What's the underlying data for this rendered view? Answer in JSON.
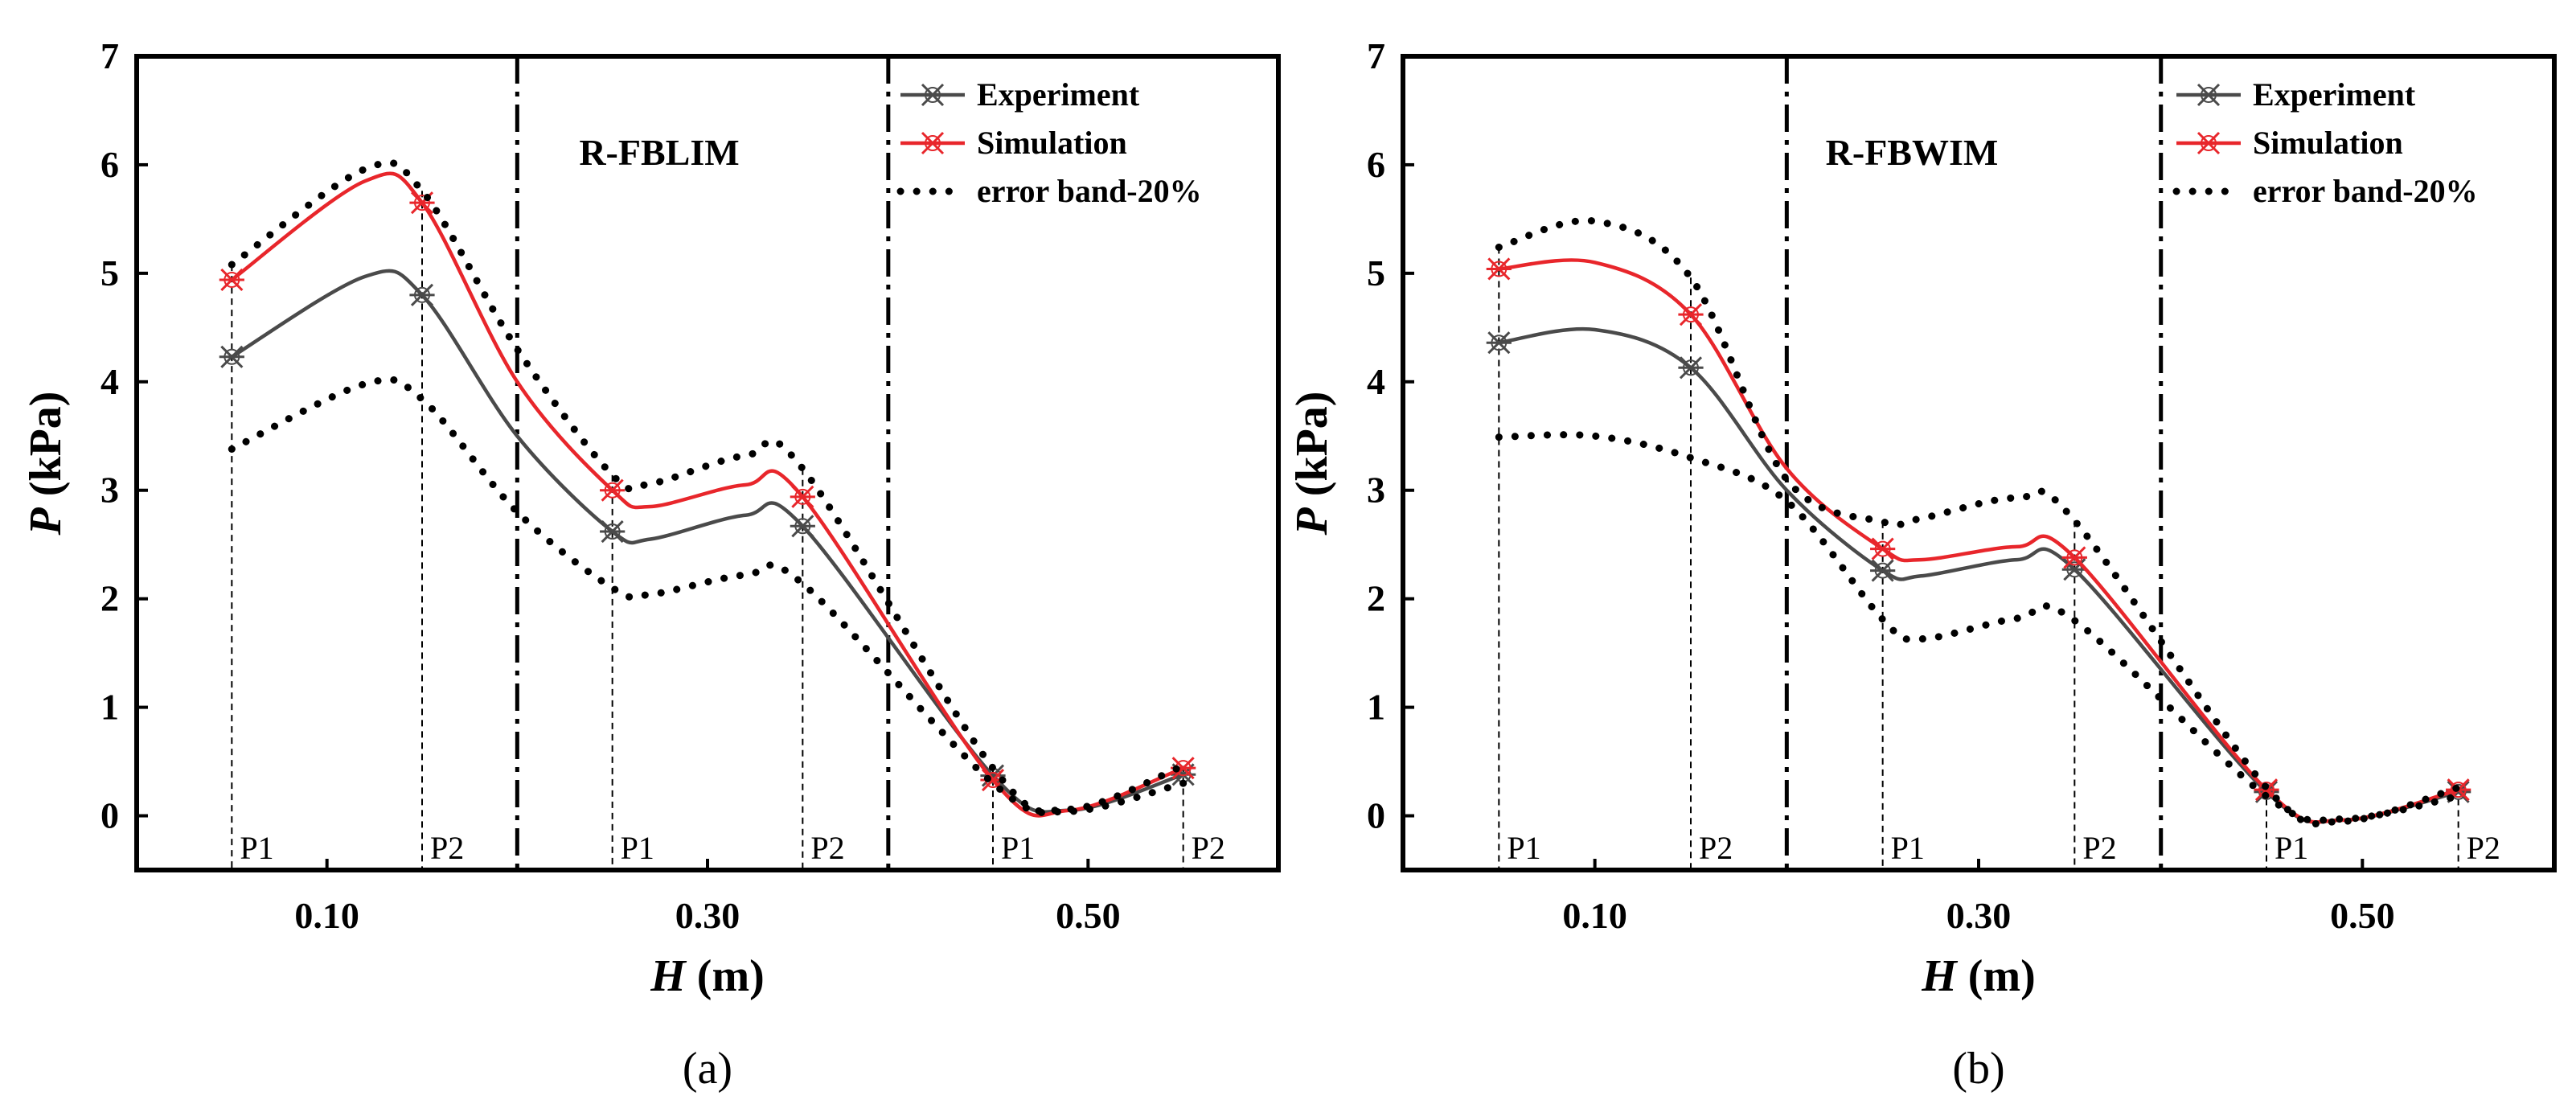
{
  "chart_data": [
    {
      "type": "line",
      "panel_label": "(a)",
      "region_label": "R-FBLIM",
      "xlabel": "H",
      "xlabel_unit": "(m)",
      "ylabel": "P",
      "ylabel_unit": "(kPa)",
      "xlim": [
        0.0,
        0.6
      ],
      "ylim": [
        -0.5,
        7
      ],
      "x_ticks": [
        0.1,
        0.3,
        0.5
      ],
      "x_tick_labels": [
        "0.10",
        "0.30",
        "0.50"
      ],
      "y_ticks": [
        0,
        1,
        2,
        3,
        4,
        5,
        6,
        7
      ],
      "y_tick_labels": [
        "0",
        "1",
        "2",
        "3",
        "4",
        "5",
        "6",
        "7"
      ],
      "region_dividers": [
        0.2,
        0.395
      ],
      "probe_x": [
        0.05,
        0.15,
        0.25,
        0.35,
        0.45,
        0.55
      ],
      "probe_labels": [
        "P1",
        "P2",
        "P1",
        "P2",
        "P1",
        "P2"
      ],
      "legend": [
        "Experiment",
        "Simulation",
        "error band-20%"
      ],
      "series": [
        {
          "name": "Experiment",
          "color": "#4a4a4a",
          "x": [
            0.05,
            0.12,
            0.15,
            0.2,
            0.25,
            0.27,
            0.32,
            0.35,
            0.45,
            0.49,
            0.55
          ],
          "y": [
            4.23,
            4.97,
            4.8,
            3.5,
            2.62,
            2.55,
            2.77,
            2.67,
            0.37,
            0.05,
            0.38
          ],
          "markers": [
            0,
            2,
            4,
            7,
            8,
            10
          ]
        },
        {
          "name": "Simulation",
          "color": "#e8262b",
          "x": [
            0.05,
            0.12,
            0.15,
            0.2,
            0.25,
            0.27,
            0.32,
            0.35,
            0.45,
            0.49,
            0.55
          ],
          "y": [
            4.94,
            5.85,
            5.65,
            4.0,
            3.0,
            2.85,
            3.05,
            2.94,
            0.33,
            0.05,
            0.44
          ],
          "markers": [
            0,
            2,
            4,
            7,
            8,
            10
          ]
        },
        {
          "name": "error band-20%",
          "color": "#000000",
          "dashed": true,
          "x": [
            0.05,
            0.12,
            0.15,
            0.2,
            0.25,
            0.27,
            0.32,
            0.35,
            0.45,
            0.49,
            0.55
          ],
          "y": [
            5.08,
            5.96,
            5.76,
            4.3,
            3.14,
            3.06,
            3.32,
            3.2,
            0.44,
            0.06,
            0.46
          ]
        },
        {
          "name": "error band-20% lower",
          "color": "#000000",
          "dashed": true,
          "x": [
            0.05,
            0.12,
            0.15,
            0.2,
            0.25,
            0.27,
            0.32,
            0.35,
            0.45,
            0.49,
            0.55
          ],
          "y": [
            3.38,
            3.98,
            3.84,
            2.8,
            2.1,
            2.04,
            2.22,
            2.14,
            0.3,
            0.04,
            0.3
          ]
        }
      ]
    },
    {
      "type": "line",
      "panel_label": "(b)",
      "region_label": "R-FBWIM",
      "xlabel": "H",
      "xlabel_unit": "(m)",
      "ylabel": "P",
      "ylabel_unit": "(kPa)",
      "xlim": [
        0.0,
        0.6
      ],
      "ylim": [
        -0.5,
        7
      ],
      "x_ticks": [
        0.1,
        0.3,
        0.5
      ],
      "x_tick_labels": [
        "0.10",
        "0.30",
        "0.50"
      ],
      "y_ticks": [
        0,
        1,
        2,
        3,
        4,
        5,
        6,
        7
      ],
      "y_tick_labels": [
        "0",
        "1",
        "2",
        "3",
        "4",
        "5",
        "6",
        "7"
      ],
      "region_dividers": [
        0.2,
        0.395
      ],
      "probe_x": [
        0.05,
        0.15,
        0.25,
        0.35,
        0.45,
        0.55
      ],
      "probe_labels": [
        "P1",
        "P2",
        "P1",
        "P2",
        "P1",
        "P2"
      ],
      "legend": [
        "Experiment",
        "Simulation",
        "error band-20%"
      ],
      "series": [
        {
          "name": "Experiment",
          "color": "#4a4a4a",
          "x": [
            0.05,
            0.1,
            0.15,
            0.2,
            0.25,
            0.27,
            0.32,
            0.35,
            0.45,
            0.49,
            0.55
          ],
          "y": [
            4.36,
            4.48,
            4.13,
            3.0,
            2.26,
            2.21,
            2.36,
            2.27,
            0.22,
            -0.04,
            0.22
          ],
          "markers": [
            0,
            2,
            4,
            7,
            8,
            10
          ]
        },
        {
          "name": "Simulation",
          "color": "#e8262b",
          "x": [
            0.05,
            0.1,
            0.15,
            0.2,
            0.25,
            0.27,
            0.32,
            0.35,
            0.45,
            0.49,
            0.55
          ],
          "y": [
            5.04,
            5.1,
            4.62,
            3.2,
            2.46,
            2.36,
            2.48,
            2.38,
            0.24,
            -0.04,
            0.24
          ],
          "markers": [
            0,
            2,
            4,
            7,
            8,
            10
          ]
        },
        {
          "name": "error band-20%",
          "color": "#000000",
          "dashed": true,
          "x": [
            0.05,
            0.1,
            0.15,
            0.2,
            0.25,
            0.27,
            0.32,
            0.35,
            0.45,
            0.49,
            0.55
          ],
          "y": [
            5.24,
            5.48,
            4.96,
            3.1,
            2.71,
            2.74,
            2.93,
            2.72,
            0.26,
            -0.05,
            0.26
          ]
        },
        {
          "name": "error band-20% lower",
          "color": "#000000",
          "dashed": true,
          "x": [
            0.05,
            0.1,
            0.15,
            0.2,
            0.25,
            0.27,
            0.32,
            0.35,
            0.45,
            0.49,
            0.55
          ],
          "y": [
            3.49,
            3.5,
            3.3,
            2.9,
            1.81,
            1.63,
            1.82,
            1.8,
            0.18,
            -0.03,
            0.18
          ]
        }
      ]
    }
  ]
}
